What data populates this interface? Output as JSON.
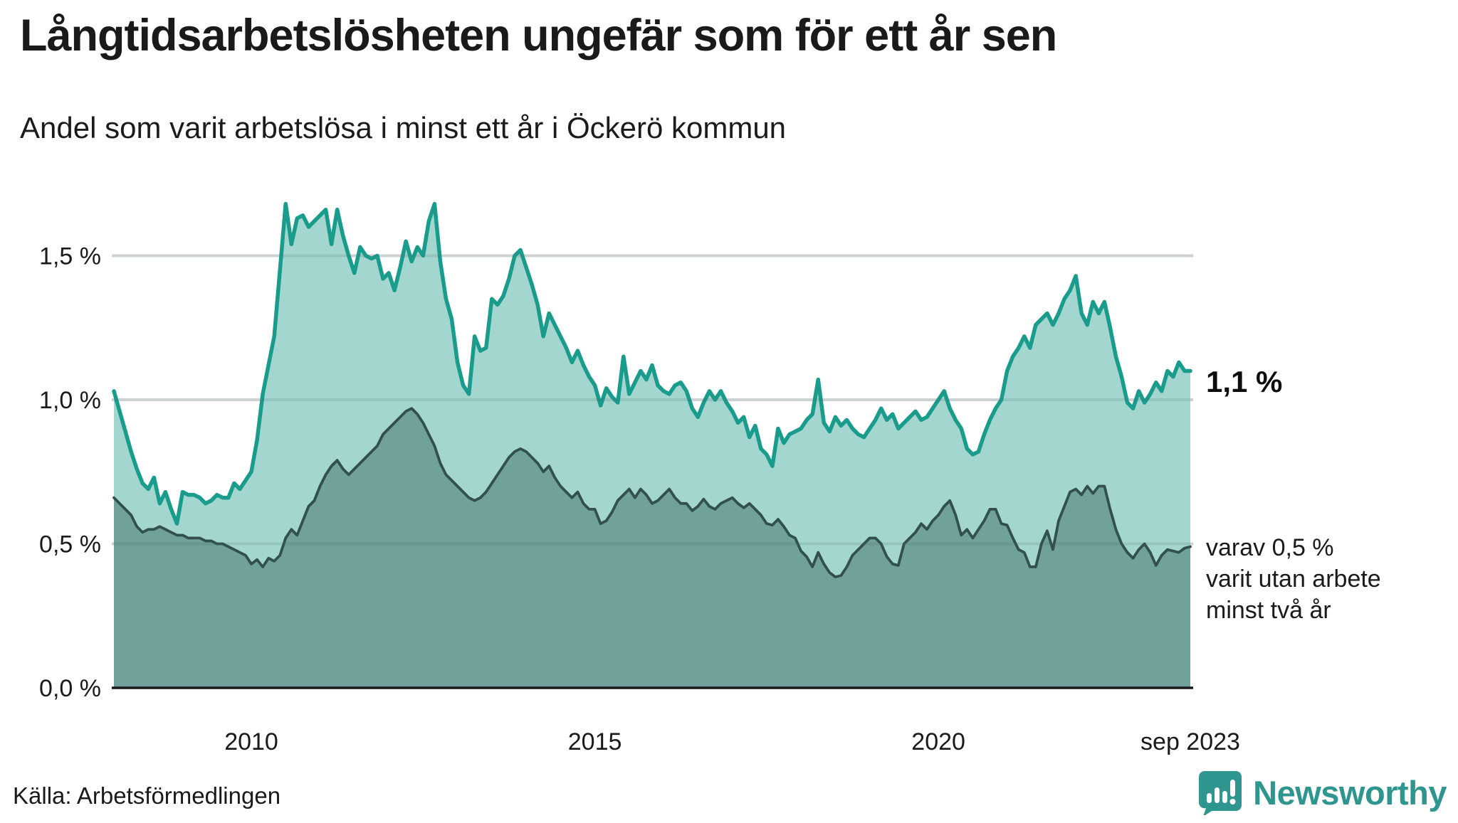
{
  "header": {
    "title": "Långtidsarbetslösheten ungefär som för ett år sen",
    "subtitle": "Andel som varit arbetslösa i minst ett år i Öckerö kommun"
  },
  "annotations": {
    "end_value_label": "1,1 %",
    "secondary_label_lines": [
      "varav 0,5 %",
      "varit utan arbete",
      "minst två år"
    ]
  },
  "footer": {
    "source": "Källa: Arbetsförmedlingen",
    "brand": "Newsworthy"
  },
  "colors": {
    "teal_line": "#1a9c8d",
    "teal_fill": "#a4d6d0",
    "dark_line": "#32514c",
    "dark_fill": "#71a19b",
    "gridline": "#e6e6ea",
    "grid_overlay": "rgba(70,105,100,0.16)",
    "axis": "#1a1a1a",
    "brand": "#2e968e"
  },
  "chart_data": {
    "type": "area",
    "title": "Långtidsarbetslösheten ungefär som för ett år sen",
    "subtitle": "Andel som varit arbetslösa i minst ett år i Öckerö kommun",
    "x_start": "2008-01",
    "x_end": "2023-09",
    "x_ticks": [
      {
        "month_index": 24,
        "label": "2010"
      },
      {
        "month_index": 84,
        "label": "2015"
      },
      {
        "month_index": 144,
        "label": "2020"
      },
      {
        "month_index": 188,
        "label": "sep 2023"
      }
    ],
    "y_ticks": [
      {
        "value": 0.0,
        "label": "0,0 %"
      },
      {
        "value": 0.5,
        "label": "0,5 %"
      },
      {
        "value": 1.0,
        "label": "1,0 %"
      },
      {
        "value": 1.5,
        "label": "1,5 %"
      }
    ],
    "ylim": [
      0,
      1.75
    ],
    "grid": true,
    "legend_position": "none",
    "series": [
      {
        "name": "andel arbetslösa minst ett år",
        "end_value": 1.1,
        "values": [
          1.03,
          0.96,
          0.89,
          0.82,
          0.76,
          0.71,
          0.69,
          0.73,
          0.64,
          0.68,
          0.62,
          0.57,
          0.68,
          0.67,
          0.67,
          0.66,
          0.64,
          0.65,
          0.67,
          0.66,
          0.66,
          0.71,
          0.69,
          0.72,
          0.75,
          0.86,
          1.02,
          1.12,
          1.22,
          1.45,
          1.68,
          1.54,
          1.63,
          1.64,
          1.6,
          1.62,
          1.64,
          1.66,
          1.54,
          1.66,
          1.57,
          1.5,
          1.44,
          1.53,
          1.5,
          1.49,
          1.5,
          1.42,
          1.44,
          1.38,
          1.46,
          1.55,
          1.48,
          1.53,
          1.5,
          1.62,
          1.68,
          1.48,
          1.35,
          1.28,
          1.13,
          1.05,
          1.02,
          1.22,
          1.17,
          1.18,
          1.35,
          1.33,
          1.36,
          1.42,
          1.5,
          1.52,
          1.46,
          1.4,
          1.33,
          1.22,
          1.3,
          1.26,
          1.22,
          1.18,
          1.13,
          1.17,
          1.12,
          1.08,
          1.05,
          0.98,
          1.04,
          1.01,
          0.99,
          1.15,
          1.02,
          1.06,
          1.1,
          1.07,
          1.12,
          1.05,
          1.03,
          1.02,
          1.05,
          1.06,
          1.03,
          0.97,
          0.94,
          0.99,
          1.03,
          1.0,
          1.03,
          0.99,
          0.96,
          0.92,
          0.94,
          0.87,
          0.91,
          0.83,
          0.81,
          0.77,
          0.9,
          0.85,
          0.88,
          0.89,
          0.9,
          0.93,
          0.95,
          1.07,
          0.92,
          0.89,
          0.94,
          0.91,
          0.93,
          0.9,
          0.88,
          0.87,
          0.9,
          0.93,
          0.97,
          0.93,
          0.95,
          0.9,
          0.92,
          0.94,
          0.96,
          0.93,
          0.94,
          0.97,
          1.0,
          1.03,
          0.97,
          0.93,
          0.9,
          0.83,
          0.81,
          0.82,
          0.88,
          0.93,
          0.97,
          1.0,
          1.1,
          1.15,
          1.18,
          1.22,
          1.18,
          1.26,
          1.28,
          1.3,
          1.26,
          1.3,
          1.35,
          1.38,
          1.43,
          1.3,
          1.26,
          1.34,
          1.3,
          1.34,
          1.25,
          1.15,
          1.08,
          0.99,
          0.97,
          1.03,
          0.99,
          1.02,
          1.06,
          1.03,
          1.1,
          1.08,
          1.13,
          1.1,
          1.1
        ]
      },
      {
        "name": "varav utan arbete minst två år",
        "end_value": 0.5,
        "values": [
          0.66,
          0.64,
          0.62,
          0.6,
          0.56,
          0.54,
          0.55,
          0.55,
          0.56,
          0.55,
          0.54,
          0.53,
          0.53,
          0.52,
          0.52,
          0.52,
          0.51,
          0.51,
          0.5,
          0.5,
          0.49,
          0.48,
          0.47,
          0.46,
          0.43,
          0.445,
          0.42,
          0.45,
          0.44,
          0.46,
          0.52,
          0.55,
          0.53,
          0.58,
          0.63,
          0.65,
          0.7,
          0.74,
          0.77,
          0.79,
          0.76,
          0.74,
          0.76,
          0.78,
          0.8,
          0.82,
          0.84,
          0.88,
          0.9,
          0.92,
          0.94,
          0.96,
          0.97,
          0.95,
          0.92,
          0.88,
          0.84,
          0.78,
          0.74,
          0.72,
          0.7,
          0.68,
          0.66,
          0.65,
          0.66,
          0.68,
          0.71,
          0.74,
          0.77,
          0.8,
          0.82,
          0.83,
          0.82,
          0.8,
          0.78,
          0.75,
          0.77,
          0.73,
          0.7,
          0.68,
          0.66,
          0.68,
          0.64,
          0.62,
          0.62,
          0.57,
          0.58,
          0.61,
          0.65,
          0.67,
          0.69,
          0.66,
          0.69,
          0.67,
          0.64,
          0.65,
          0.67,
          0.69,
          0.66,
          0.64,
          0.64,
          0.615,
          0.63,
          0.655,
          0.63,
          0.62,
          0.64,
          0.65,
          0.66,
          0.64,
          0.625,
          0.64,
          0.62,
          0.6,
          0.57,
          0.565,
          0.585,
          0.56,
          0.53,
          0.52,
          0.475,
          0.455,
          0.42,
          0.47,
          0.43,
          0.4,
          0.385,
          0.39,
          0.42,
          0.46,
          0.48,
          0.5,
          0.52,
          0.52,
          0.5,
          0.455,
          0.43,
          0.425,
          0.5,
          0.52,
          0.54,
          0.57,
          0.55,
          0.58,
          0.6,
          0.63,
          0.65,
          0.6,
          0.53,
          0.55,
          0.52,
          0.55,
          0.58,
          0.62,
          0.62,
          0.57,
          0.565,
          0.52,
          0.48,
          0.47,
          0.42,
          0.42,
          0.5,
          0.545,
          0.48,
          0.58,
          0.63,
          0.68,
          0.69,
          0.67,
          0.7,
          0.675,
          0.7,
          0.7,
          0.62,
          0.55,
          0.5,
          0.47,
          0.45,
          0.48,
          0.5,
          0.47,
          0.425,
          0.46,
          0.48,
          0.475,
          0.47,
          0.485,
          0.49
        ]
      }
    ]
  }
}
